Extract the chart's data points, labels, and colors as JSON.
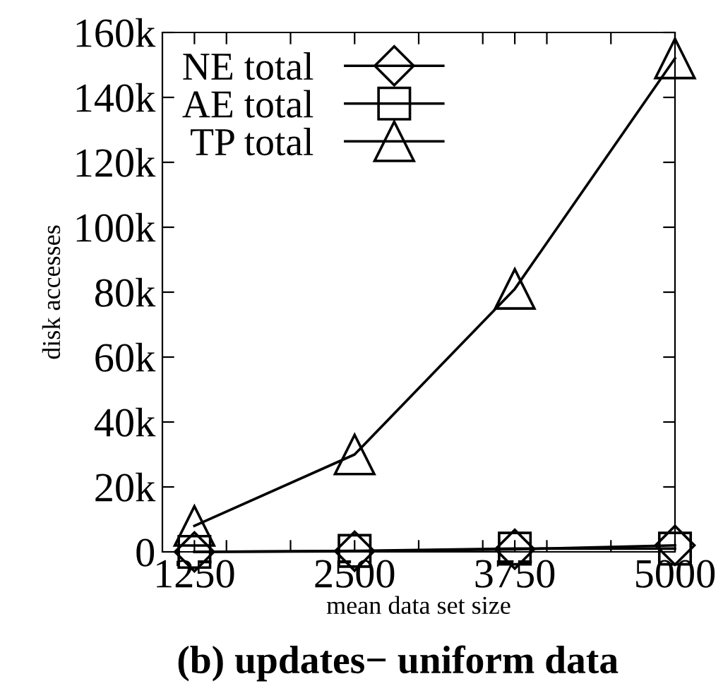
{
  "chart_data": {
    "type": "line",
    "title": "(b) updates− uniform data",
    "xlabel": "mean data set size",
    "ylabel": "disk accesses",
    "x": [
      1250,
      2500,
      3750,
      5000
    ],
    "series": [
      {
        "name": "NE total",
        "color": "#000000",
        "marker": "diamond",
        "values": [
          0,
          200,
          800,
          2000
        ]
      },
      {
        "name": "AE total",
        "color": "#000000",
        "marker": "square",
        "values": [
          0,
          300,
          1000,
          1000
        ]
      },
      {
        "name": "TP total",
        "color": "#000000",
        "marker": "triangle",
        "values": [
          8000,
          30000,
          81000,
          152000
        ]
      }
    ],
    "xlim": [
      1000,
      5000
    ],
    "xticks": [
      1250,
      {
        "value": 1500,
        "label": null
      },
      {
        "value": 2000,
        "label": null
      },
      2500,
      {
        "value": 3000,
        "label": null
      },
      {
        "value": 3500,
        "label": null
      },
      3750,
      {
        "value": 4000,
        "label": null
      },
      {
        "value": 4500,
        "label": null
      },
      5000
    ],
    "ylim": [
      0,
      160000
    ],
    "yticks": [
      {
        "value": 0,
        "label": "0"
      },
      {
        "value": 20000,
        "label": "20k"
      },
      {
        "value": 40000,
        "label": "40k"
      },
      {
        "value": 60000,
        "label": "60k"
      },
      {
        "value": 80000,
        "label": "80k"
      },
      {
        "value": 100000,
        "label": "100k"
      },
      {
        "value": 120000,
        "label": "120k"
      },
      {
        "value": 140000,
        "label": "140k"
      },
      {
        "value": 160000,
        "label": "160k"
      }
    ],
    "grid": false,
    "legend": "top left",
    "line_style": "solid"
  }
}
